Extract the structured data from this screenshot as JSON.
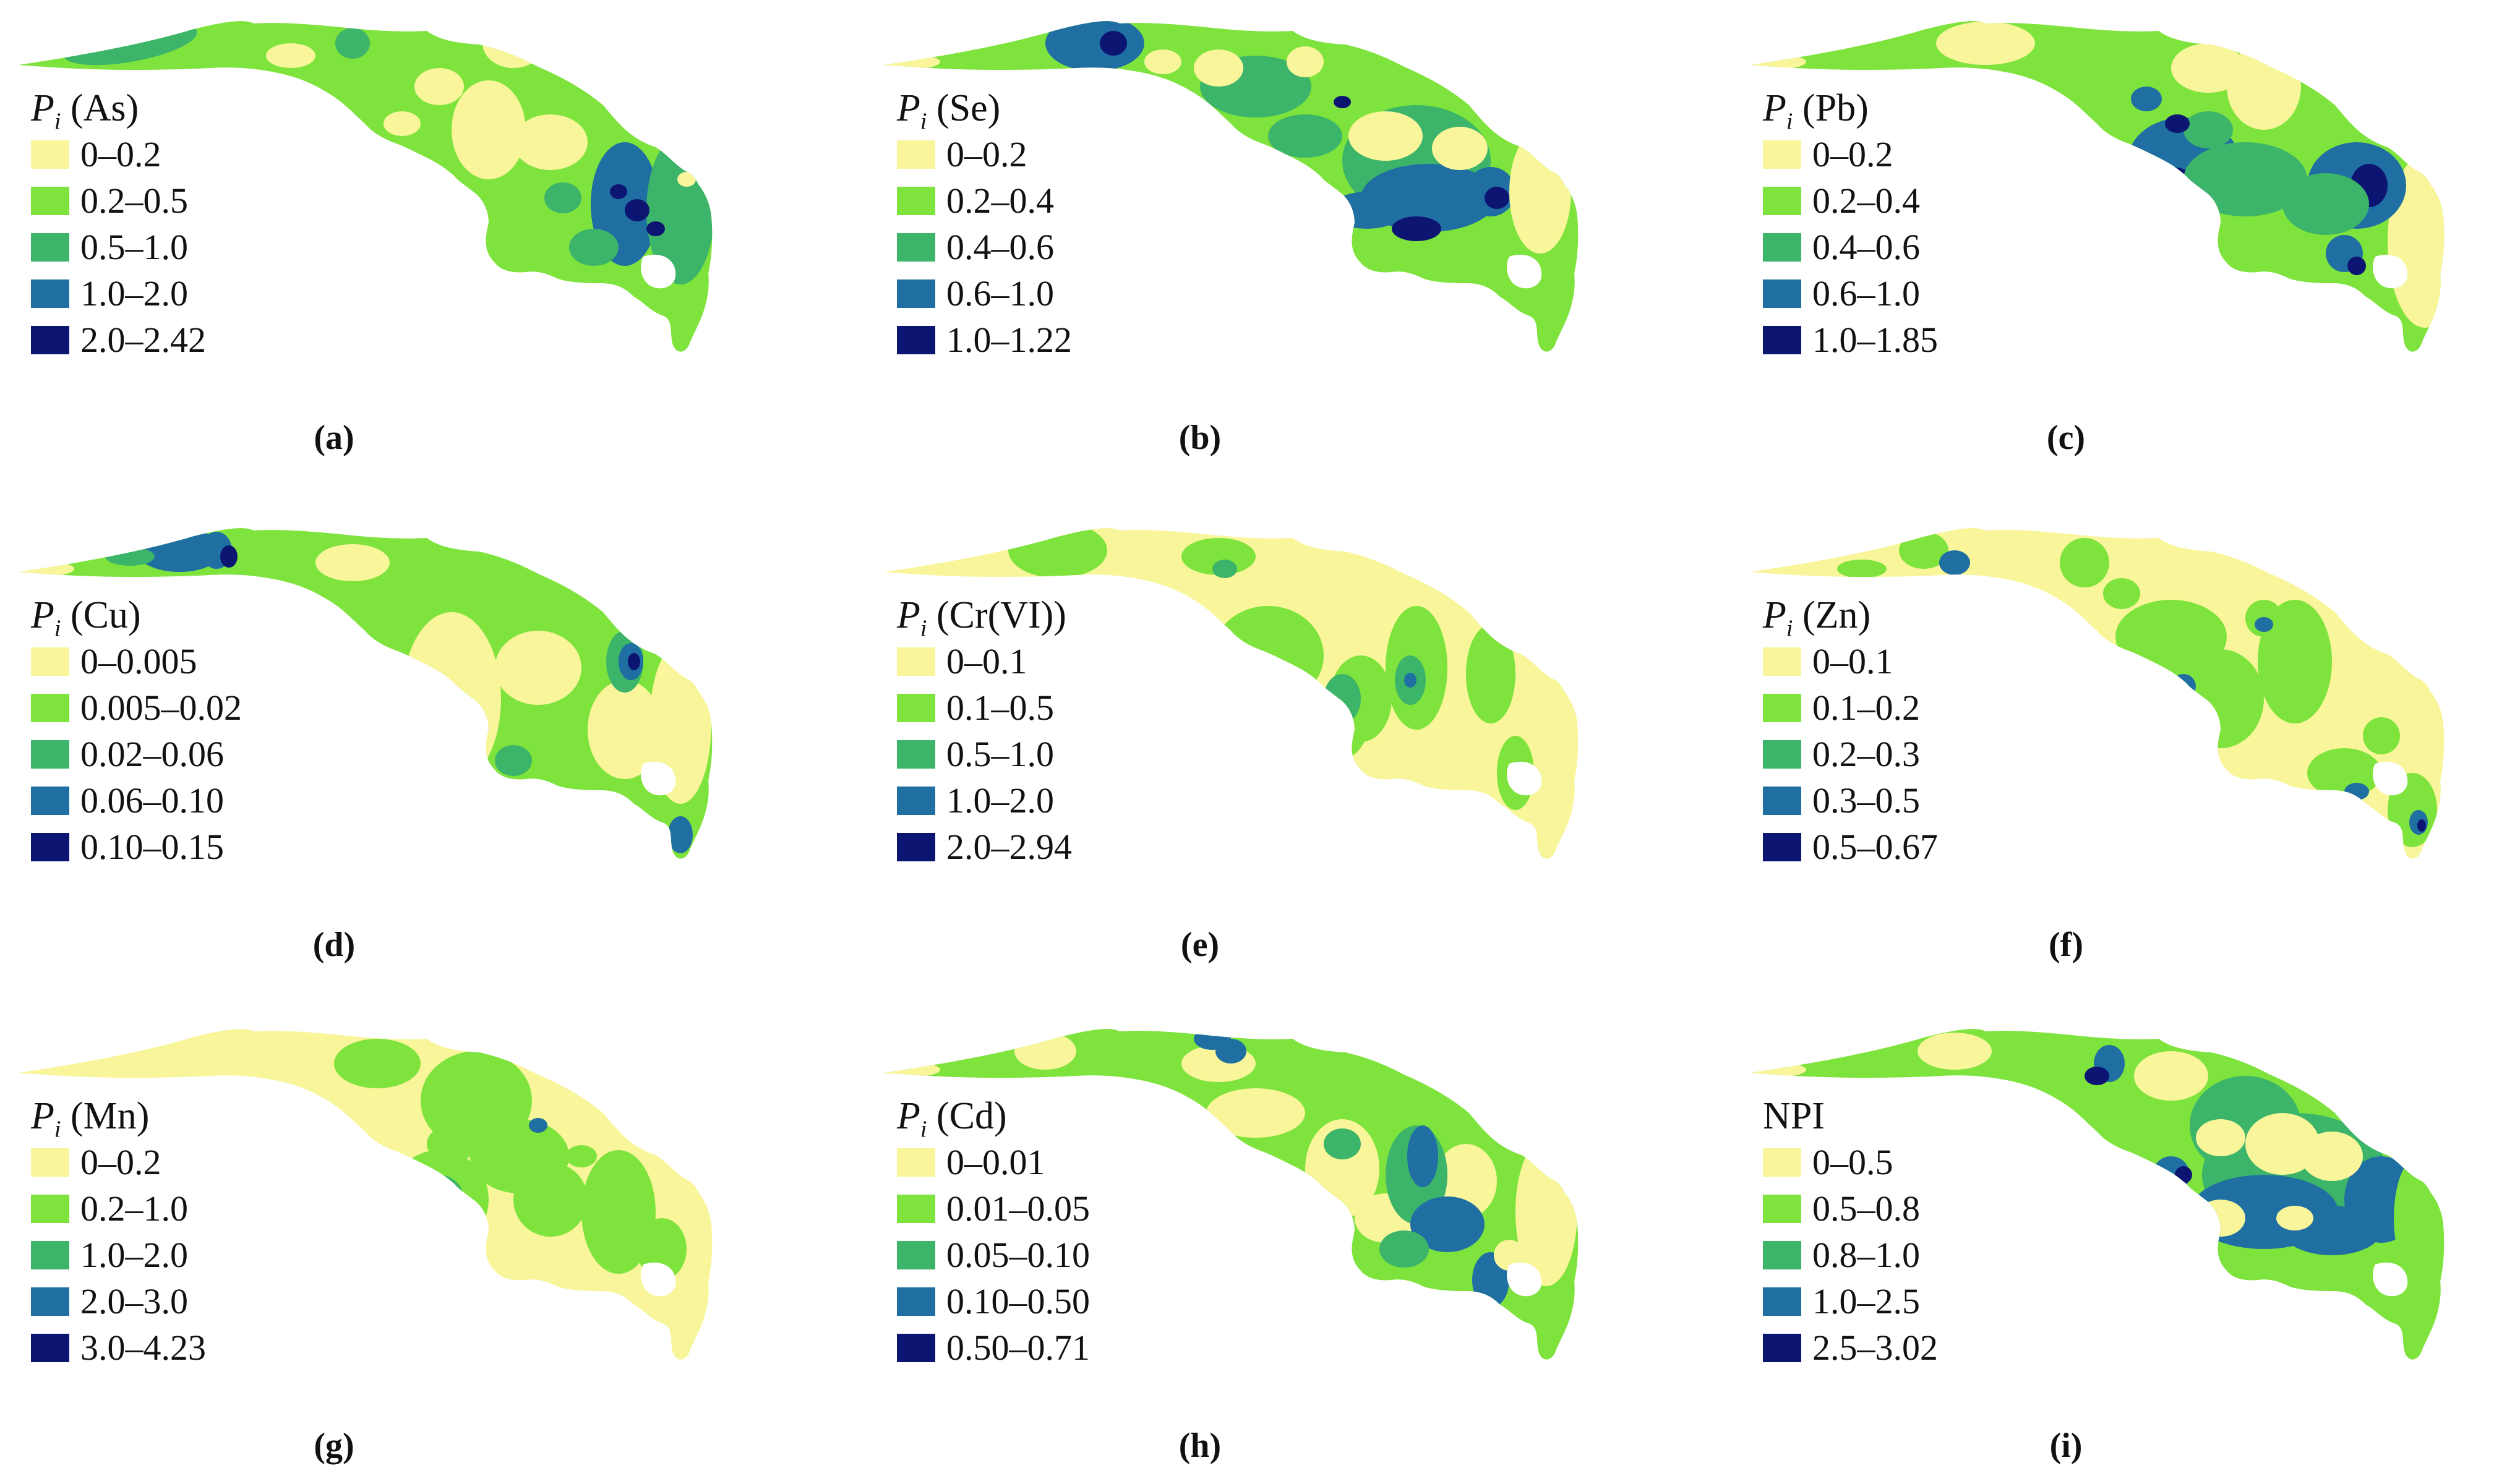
{
  "colors": {
    "class1": "#f8f59a",
    "class2": "#7ee33c",
    "class3": "#3cb46a",
    "class4": "#1f6fa2",
    "class5": "#0c1572"
  },
  "panels": [
    {
      "symbol": "P",
      "subscript": "i",
      "element": "(As)",
      "caption": "(a)",
      "classes": [
        "0–0.2",
        "0.2–0.5",
        "0.5–1.0",
        "1.0–2.0",
        "2.0–2.42"
      ]
    },
    {
      "symbol": "P",
      "subscript": "i",
      "element": "(Se)",
      "caption": "(b)",
      "classes": [
        "0–0.2",
        "0.2–0.4",
        "0.4–0.6",
        "0.6–1.0",
        "1.0–1.22"
      ]
    },
    {
      "symbol": "P",
      "subscript": "i",
      "element": "(Pb)",
      "caption": "(c)",
      "classes": [
        "0–0.2",
        "0.2–0.4",
        "0.4–0.6",
        "0.6–1.0",
        "1.0–1.85"
      ]
    },
    {
      "symbol": "P",
      "subscript": "i",
      "element": "(Cu)",
      "caption": "(d)",
      "classes": [
        "0–0.005",
        "0.005–0.02",
        "0.02–0.06",
        "0.06–0.10",
        "0.10–0.15"
      ]
    },
    {
      "symbol": "P",
      "subscript": "i",
      "element": "(Cr(VI))",
      "caption": "(e)",
      "classes": [
        "0–0.1",
        "0.1–0.5",
        "0.5–1.0",
        "1.0–2.0",
        "2.0–2.94"
      ]
    },
    {
      "symbol": "P",
      "subscript": "i",
      "element": "(Zn)",
      "caption": "(f)",
      "classes": [
        "0–0.1",
        "0.1–0.2",
        "0.2–0.3",
        "0.3–0.5",
        "0.5–0.67"
      ]
    },
    {
      "symbol": "P",
      "subscript": "i",
      "element": "(Mn)",
      "caption": "(g)",
      "classes": [
        "0–0.2",
        "0.2–1.0",
        "1.0–2.0",
        "2.0–3.0",
        "3.0–4.23"
      ]
    },
    {
      "symbol": "P",
      "subscript": "i",
      "element": "(Cd)",
      "caption": "(h)",
      "classes": [
        "0–0.01",
        "0.01–0.05",
        "0.05–0.10",
        "0.10–0.50",
        "0.50–0.71"
      ]
    },
    {
      "symbol": "",
      "subscript": "",
      "element": "NPI",
      "caption": "(i)",
      "classes": [
        "0–0.5",
        "0.5–0.8",
        "0.8–1.0",
        "1.0–2.5",
        "2.5–3.02"
      ]
    }
  ]
}
